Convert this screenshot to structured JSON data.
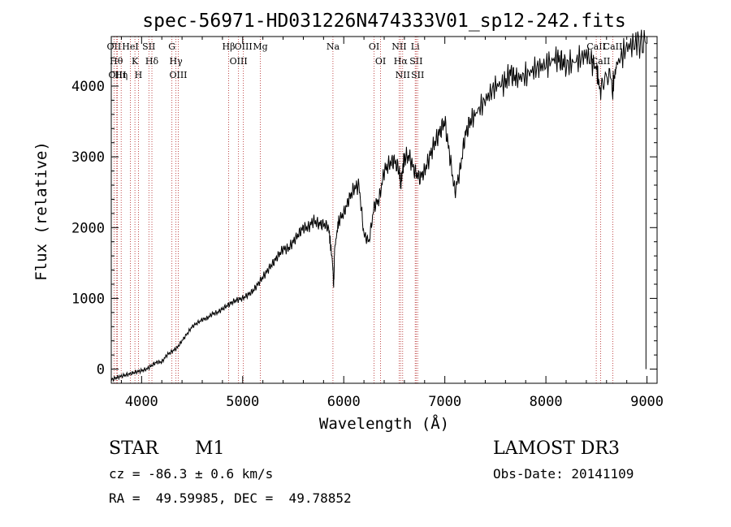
{
  "chart_data": {
    "type": "line",
    "title": "spec-56971-HD031226N474333V01_sp12-242.fits",
    "xlabel": "Wavelength (Å)",
    "ylabel": "Flux (relative)",
    "xlim": [
      3700,
      9100
    ],
    "ylim": [
      -200,
      4700
    ],
    "xticks": [
      4000,
      5000,
      6000,
      7000,
      8000,
      9000
    ],
    "yticks": [
      0,
      1000,
      2000,
      3000,
      4000
    ],
    "grid": false,
    "line_color": "#000000",
    "marker_color": "#b22222",
    "series": [
      {
        "name": "spectrum",
        "x": [
          3700,
          3750,
          3800,
          3850,
          3900,
          3950,
          4000,
          4050,
          4100,
          4150,
          4200,
          4250,
          4300,
          4350,
          4400,
          4450,
          4500,
          4550,
          4600,
          4650,
          4700,
          4750,
          4800,
          4850,
          4900,
          4950,
          5000,
          5050,
          5100,
          5150,
          5200,
          5250,
          5300,
          5350,
          5400,
          5450,
          5500,
          5550,
          5600,
          5650,
          5700,
          5750,
          5800,
          5850,
          5890,
          5900,
          5910,
          5950,
          6000,
          6050,
          6100,
          6150,
          6200,
          6250,
          6300,
          6350,
          6400,
          6450,
          6500,
          6550,
          6563,
          6600,
          6650,
          6700,
          6750,
          6800,
          6850,
          6900,
          6950,
          7000,
          7050,
          7100,
          7150,
          7200,
          7250,
          7300,
          7400,
          7500,
          7600,
          7650,
          7700,
          7800,
          7900,
          8000,
          8100,
          8150,
          8200,
          8300,
          8400,
          8500,
          8542,
          8600,
          8662,
          8700,
          8800,
          8900,
          8990
        ],
        "y": [
          -150,
          -120,
          -100,
          -80,
          -60,
          -40,
          -20,
          0,
          50,
          100,
          100,
          200,
          250,
          300,
          400,
          500,
          600,
          650,
          700,
          720,
          780,
          800,
          850,
          900,
          950,
          980,
          1000,
          1050,
          1100,
          1200,
          1300,
          1400,
          1500,
          1600,
          1700,
          1700,
          1800,
          1900,
          2000,
          2000,
          2100,
          2050,
          2050,
          2000,
          1500,
          1150,
          1700,
          2100,
          2200,
          2400,
          2550,
          2600,
          1900,
          1800,
          2300,
          2400,
          2800,
          2900,
          2950,
          2800,
          2600,
          3000,
          3000,
          2800,
          2700,
          2800,
          3000,
          3200,
          3350,
          3500,
          3000,
          2500,
          2800,
          3300,
          3500,
          3600,
          3800,
          4000,
          4050,
          4200,
          4100,
          4150,
          4250,
          4300,
          4400,
          4350,
          4300,
          4350,
          4450,
          4250,
          3900,
          4200,
          4000,
          4300,
          4550,
          4600,
          4600
        ]
      }
    ],
    "lines": [
      {
        "x": 3750,
        "label": "Hθ"
      },
      {
        "x": 3727,
        "label": "OII"
      },
      {
        "x": 3760,
        "label": "OIII"
      },
      {
        "x": 3798,
        "label": "Hη"
      },
      {
        "x": 3889,
        "label": "HeI"
      },
      {
        "x": 3934,
        "label": "K"
      },
      {
        "x": 3969,
        "label": "H"
      },
      {
        "x": 4072,
        "label": "SII"
      },
      {
        "x": 4102,
        "label": "Hδ"
      },
      {
        "x": 4300,
        "label": "G"
      },
      {
        "x": 4340,
        "label": "Hγ"
      },
      {
        "x": 4363,
        "label": "OIII"
      },
      {
        "x": 4861,
        "label": "Hβ"
      },
      {
        "x": 4959,
        "label": "OIII"
      },
      {
        "x": 5007,
        "label": "OIII"
      },
      {
        "x": 5175,
        "label": "Mg"
      },
      {
        "x": 5893,
        "label": "Na"
      },
      {
        "x": 6300,
        "label": "OI"
      },
      {
        "x": 6364,
        "label": "OI"
      },
      {
        "x": 6548,
        "label": "NII"
      },
      {
        "x": 6563,
        "label": "Hα"
      },
      {
        "x": 6583,
        "label": "NII"
      },
      {
        "x": 6707,
        "label": "Li"
      },
      {
        "x": 6716,
        "label": "SII"
      },
      {
        "x": 6731,
        "label": "SII"
      },
      {
        "x": 8498,
        "label": "CaII"
      },
      {
        "x": 8542,
        "label": "CaII"
      },
      {
        "x": 8662,
        "label": "CaII"
      }
    ]
  },
  "info": {
    "object_class": "STAR",
    "subclass": "M1",
    "survey": "LAMOST DR3",
    "cz": "cz = -86.3 ± 0.6 km/s",
    "obs_date": "Obs-Date: 20141109",
    "coords": "RA =  49.59985, DEC =  49.78852"
  }
}
